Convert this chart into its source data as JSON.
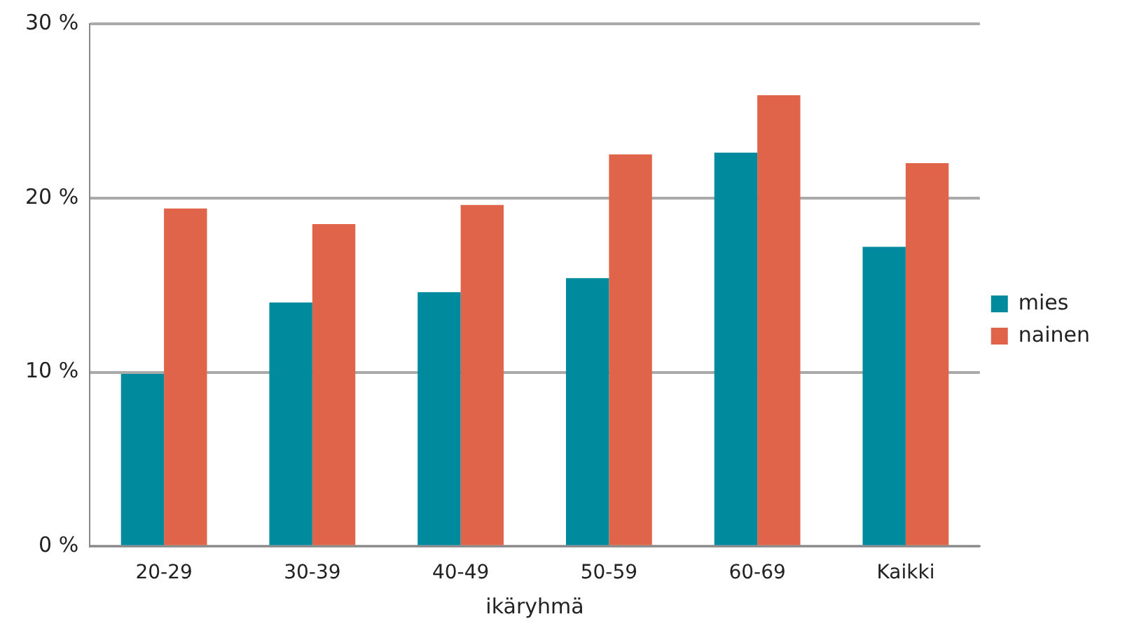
{
  "chart_data": {
    "type": "bar",
    "xlabel": "ikäryhmä",
    "categories": [
      "20-29",
      "30-39",
      "40-49",
      "50-59",
      "60-69",
      "Kaikki"
    ],
    "series": [
      {
        "name": "mies",
        "color": "#008a9e",
        "values": [
          9.9,
          14.0,
          14.6,
          15.4,
          22.6,
          17.2
        ]
      },
      {
        "name": "nainen",
        "color": "#e0644a",
        "values": [
          19.4,
          18.5,
          19.6,
          22.5,
          25.9,
          22.0
        ]
      }
    ],
    "ylim": [
      0,
      30
    ],
    "yticks": [
      {
        "value": 0,
        "label": "0 %"
      },
      {
        "value": 10,
        "label": "10 %"
      },
      {
        "value": 20,
        "label": "20 %"
      },
      {
        "value": 30,
        "label": "30 %"
      }
    ],
    "grid": "y",
    "legend": "right"
  }
}
